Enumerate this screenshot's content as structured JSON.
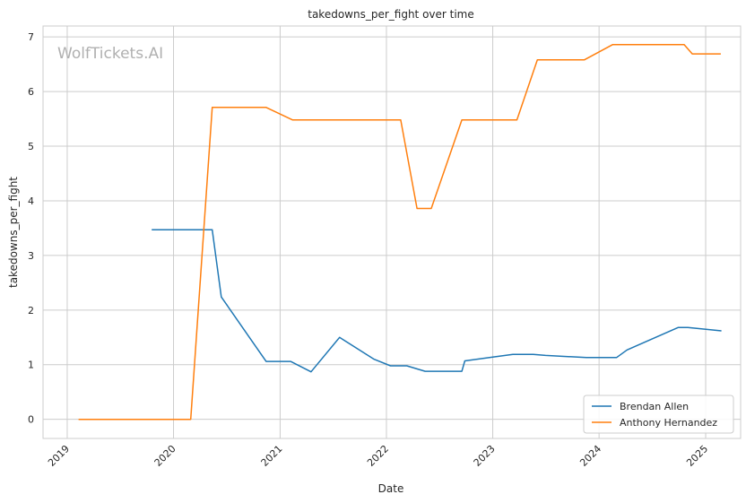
{
  "chart_data": {
    "type": "line",
    "title": "takedowns_per_fight over time",
    "xlabel": "Date",
    "ylabel": "takedowns_per_fight",
    "watermark": "WolfTickets.AI",
    "x_ticks": [
      "2019",
      "2020",
      "2021",
      "2022",
      "2023",
      "2024",
      "2025"
    ],
    "y_ticks": [
      0,
      1,
      2,
      3,
      4,
      5,
      6,
      7
    ],
    "xlim": [
      "2018-10-10",
      "2025-05-01"
    ],
    "ylim": [
      -0.35,
      7.2
    ],
    "grid": true,
    "legend_position": "bottom-right",
    "series": [
      {
        "name": "Brendan Allen",
        "color": "#1f77b4",
        "points": [
          [
            "2019-10-18",
            3.47
          ],
          [
            "2020-05-13",
            3.47
          ],
          [
            "2020-06-13",
            2.24
          ],
          [
            "2020-11-14",
            1.06
          ],
          [
            "2021-02-06",
            1.06
          ],
          [
            "2021-04-17",
            0.87
          ],
          [
            "2021-07-24",
            1.5
          ],
          [
            "2021-11-20",
            1.1
          ],
          [
            "2022-01-15",
            0.98
          ],
          [
            "2022-03-12",
            0.98
          ],
          [
            "2022-05-14",
            0.88
          ],
          [
            "2022-09-17",
            0.88
          ],
          [
            "2022-09-27",
            1.07
          ],
          [
            "2023-01-01",
            1.14
          ],
          [
            "2023-03-11",
            1.19
          ],
          [
            "2023-05-20",
            1.19
          ],
          [
            "2023-07-01",
            1.17
          ],
          [
            "2023-11-18",
            1.13
          ],
          [
            "2024-03-01",
            1.13
          ],
          [
            "2024-04-06",
            1.27
          ],
          [
            "2024-09-28",
            1.68
          ],
          [
            "2024-11-01",
            1.68
          ],
          [
            "2025-02-24",
            1.62
          ]
        ]
      },
      {
        "name": "Anthony Hernandez",
        "color": "#ff7f0e",
        "points": [
          [
            "2019-02-09",
            0.0
          ],
          [
            "2020-02-29",
            0.0
          ],
          [
            "2020-05-13",
            5.71
          ],
          [
            "2020-11-14",
            5.71
          ],
          [
            "2021-02-13",
            5.48
          ],
          [
            "2022-02-19",
            5.48
          ],
          [
            "2022-04-16",
            3.86
          ],
          [
            "2022-06-04",
            3.86
          ],
          [
            "2022-09-17",
            5.48
          ],
          [
            "2023-03-25",
            5.48
          ],
          [
            "2023-06-03",
            6.58
          ],
          [
            "2023-11-11",
            6.58
          ],
          [
            "2024-02-17",
            6.86
          ],
          [
            "2024-10-19",
            6.86
          ],
          [
            "2024-11-16",
            6.69
          ],
          [
            "2025-02-22",
            6.69
          ]
        ]
      }
    ]
  }
}
